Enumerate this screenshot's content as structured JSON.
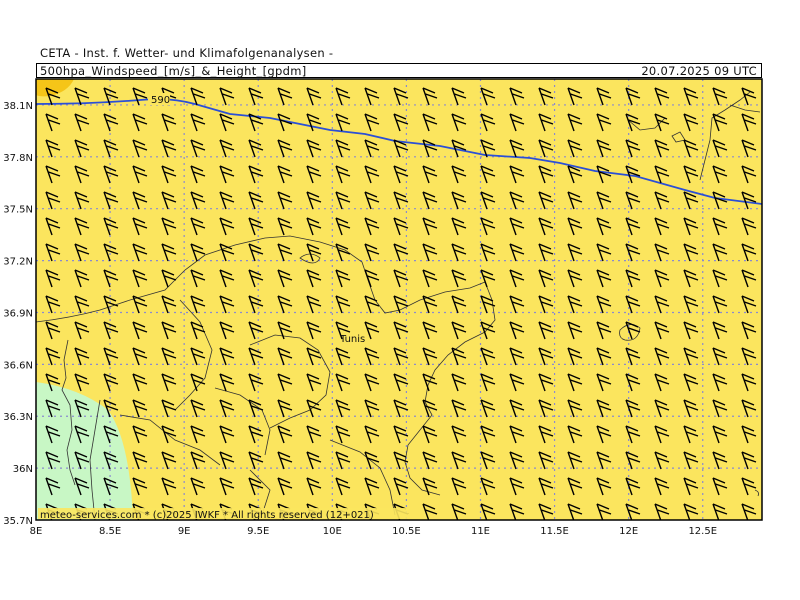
{
  "header": {
    "institute": "CETA - Inst. f. Wetter- und Klimafolgenanalysen -",
    "product": "500hpa_Windspeed_[m/s]_&_Height_[gpdm]",
    "valid_time": "20.07.2025 09 UTC"
  },
  "map": {
    "lon_range": [
      8.0,
      12.9
    ],
    "lat_range": [
      35.7,
      38.25
    ],
    "lon_ticks": [
      "8E",
      "8.5E",
      "9E",
      "9.5E",
      "10E",
      "10.5E",
      "11E",
      "11.5E",
      "12E",
      "12.5E"
    ],
    "lat_ticks": [
      "38.1N",
      "37.8N",
      "37.5N",
      "37.2N",
      "36.9N",
      "36.6N",
      "36.3N",
      "36N",
      "35.7N"
    ],
    "contour_label": "590",
    "city_label": "Tunis",
    "credit": "meteo-services.com * (c)2025 IWKF * All rights reserved (12+021)",
    "colors": {
      "background_fill": "#fbe55e",
      "high_fill": "#f5c518",
      "low_fill": "#c8f7c5",
      "contour": "#2b4fd6",
      "coast": "#333333",
      "grid": "#8a8ad0",
      "barb": "#000000"
    }
  }
}
